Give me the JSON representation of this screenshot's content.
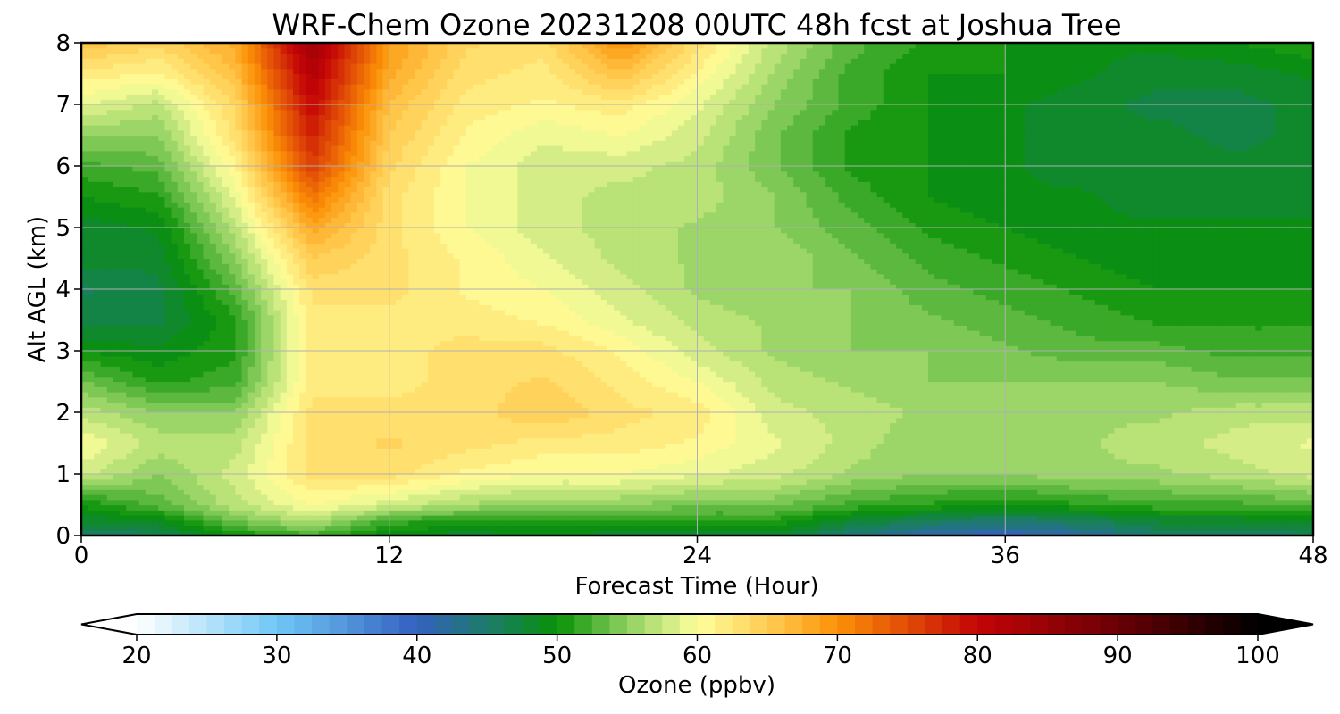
{
  "chart_data": {
    "type": "heatmap",
    "title": "WRF-Chem Ozone  20231208 00UTC 48h fcst at Joshua Tree",
    "xlabel": "Forecast Time (Hour)",
    "ylabel": "Alt AGL (km)",
    "xlim": [
      0,
      48
    ],
    "ylim": [
      0,
      8
    ],
    "xticks": [
      0,
      12,
      24,
      36,
      48
    ],
    "yticks": [
      0,
      1,
      2,
      3,
      4,
      5,
      6,
      7,
      8
    ],
    "grid": true,
    "x": [
      0,
      3,
      6,
      9,
      12,
      15,
      18,
      21,
      24,
      27,
      30,
      33,
      36,
      39,
      42,
      45,
      48
    ],
    "y": [
      0,
      0.25,
      0.5,
      1,
      1.5,
      2,
      2.5,
      3,
      3.5,
      4,
      4.5,
      5,
      5.5,
      6,
      6.5,
      7,
      7.5,
      8
    ],
    "z": [
      [
        45,
        46,
        50,
        52,
        49,
        48,
        49,
        48,
        48,
        48,
        44,
        41,
        40,
        42,
        45,
        45,
        46
      ],
      [
        48,
        49,
        54,
        57,
        52,
        51,
        51,
        51,
        51,
        51,
        48,
        46,
        45,
        46,
        48,
        48,
        49
      ],
      [
        50,
        53,
        57,
        60,
        58,
        56,
        55,
        55,
        54,
        54,
        52,
        51,
        50,
        51,
        52,
        52,
        53
      ],
      [
        58,
        55,
        58,
        63,
        63,
        61,
        60,
        60,
        59,
        58,
        56,
        55,
        55,
        56,
        56,
        57,
        58
      ],
      [
        60,
        57,
        57,
        63,
        64,
        63,
        62,
        62,
        61,
        59,
        57,
        55,
        55,
        56,
        57,
        58,
        59
      ],
      [
        57,
        55,
        55,
        63,
        63,
        63,
        65,
        63,
        62,
        58,
        57,
        56,
        56,
        56,
        56,
        57,
        57
      ],
      [
        54,
        51,
        52,
        62,
        62,
        63,
        64,
        62,
        60,
        57,
        56,
        55,
        55,
        55,
        55,
        54,
        54
      ],
      [
        50,
        49,
        51,
        62,
        62,
        63,
        63,
        61,
        58,
        56,
        55,
        55,
        54,
        53,
        53,
        52,
        52
      ],
      [
        47,
        47,
        51,
        62,
        62,
        62,
        61,
        59,
        57,
        56,
        55,
        54,
        53,
        52,
        51,
        51,
        51
      ],
      [
        46,
        47,
        53,
        63,
        63,
        61,
        60,
        58,
        56,
        55,
        55,
        53,
        52,
        51,
        50,
        50,
        50
      ],
      [
        48,
        48,
        55,
        65,
        63,
        61,
        59,
        57,
        56,
        56,
        54,
        52,
        51,
        50,
        49,
        49,
        49
      ],
      [
        48,
        49,
        57,
        68,
        63,
        60,
        58,
        57,
        56,
        55,
        53,
        51,
        50,
        49,
        49,
        49,
        49
      ],
      [
        50,
        51,
        59,
        72,
        63,
        60,
        58,
        57,
        57,
        55,
        52,
        50,
        49,
        49,
        48,
        48,
        48
      ],
      [
        52,
        53,
        61,
        76,
        64,
        60,
        58,
        58,
        57,
        54,
        51,
        50,
        49,
        48,
        48,
        48,
        48
      ],
      [
        55,
        55,
        63,
        78,
        65,
        61,
        59,
        60,
        58,
        54,
        51,
        50,
        49,
        48,
        48,
        47,
        48
      ],
      [
        59,
        57,
        64,
        80,
        66,
        62,
        61,
        62,
        59,
        55,
        52,
        50,
        49,
        48,
        47,
        47,
        48
      ],
      [
        62,
        61,
        66,
        82,
        68,
        63,
        62,
        66,
        61,
        56,
        52,
        50,
        50,
        49,
        48,
        48,
        49
      ],
      [
        66,
        64,
        68,
        84,
        69,
        64,
        63,
        70,
        63,
        57,
        53,
        51,
        50,
        49,
        49,
        50,
        51
      ]
    ],
    "colorbar": {
      "label": "Ozone  (ppbv)",
      "min": 20,
      "max": 100,
      "step": 1.25,
      "extend": "both",
      "ticks": [
        20,
        30,
        40,
        50,
        60,
        70,
        80,
        90,
        100
      ],
      "anchors": [
        {
          "v": 20,
          "c": "#ffffff"
        },
        {
          "v": 30,
          "c": "#6fc8f5"
        },
        {
          "v": 40,
          "c": "#3461c0"
        },
        {
          "v": 46,
          "c": "#188058"
        },
        {
          "v": 50,
          "c": "#079106"
        },
        {
          "v": 55,
          "c": "#8fd060"
        },
        {
          "v": 60,
          "c": "#ffff9c"
        },
        {
          "v": 65,
          "c": "#ffcd52"
        },
        {
          "v": 70,
          "c": "#fc9106"
        },
        {
          "v": 80,
          "c": "#c40406"
        },
        {
          "v": 90,
          "c": "#6a0006"
        },
        {
          "v": 100,
          "c": "#000000"
        }
      ]
    }
  }
}
